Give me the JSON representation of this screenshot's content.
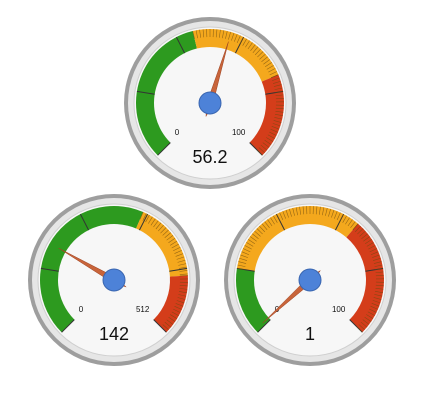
{
  "chart_data": [
    {
      "type": "gauge",
      "value_label": "56.2",
      "value": 56.2,
      "min": 0,
      "max": 100,
      "min_label": "0",
      "max_label": "100",
      "bands": [
        {
          "from": 0,
          "to": 45,
          "color": "#2d9a1f"
        },
        {
          "from": 45,
          "to": 75,
          "color": "#f4a81d"
        },
        {
          "from": 75,
          "to": 100,
          "color": "#d43d1a"
        }
      ]
    },
    {
      "type": "gauge",
      "value_label": "142",
      "value": 142,
      "min": 0,
      "max": 512,
      "min_label": "0",
      "max_label": "512",
      "bands": [
        {
          "from": 0,
          "to": 300,
          "color": "#2d9a1f"
        },
        {
          "from": 300,
          "to": 420,
          "color": "#f4a81d"
        },
        {
          "from": 420,
          "to": 512,
          "color": "#d43d1a"
        }
      ]
    },
    {
      "type": "gauge",
      "value_label": "1",
      "value": 1,
      "min": 0,
      "max": 100,
      "min_label": "0",
      "max_label": "100",
      "bands": [
        {
          "from": 0,
          "to": 20,
          "color": "#2d9a1f"
        },
        {
          "from": 20,
          "to": 65,
          "color": "#f4a81d"
        },
        {
          "from": 65,
          "to": 100,
          "color": "#d43d1a"
        }
      ]
    }
  ],
  "colors": {
    "rim_outer": "#9e9e9e",
    "rim_inner": "#e6e6e6",
    "face": "#f7f7f7",
    "needle": "#c8643a",
    "hub": "#4d82d8",
    "text": "#111111"
  }
}
